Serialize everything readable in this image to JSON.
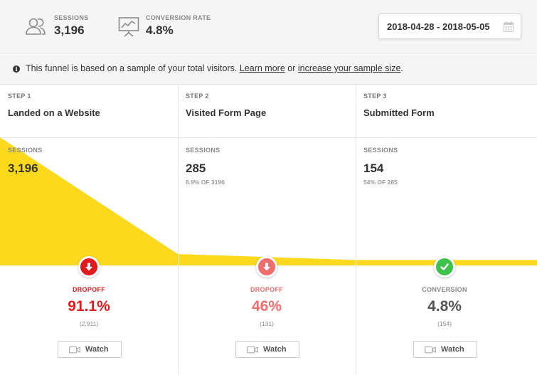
{
  "header": {
    "sessions": {
      "label": "SESSIONS",
      "value": "3,196",
      "icon": "users-icon"
    },
    "conversion_rate": {
      "label": "CONVERSION RATE",
      "value": "4.8%",
      "icon": "presentation-chart-icon"
    },
    "date_range": {
      "value": "2018-04-28 - 2018-05-05",
      "icon": "calendar-icon"
    }
  },
  "notice": {
    "text": "This funnel is based on a sample of your total visitors.",
    "learn_more": "Learn more",
    "or": "or",
    "increase_sample": "increase your sample size",
    "end": "."
  },
  "colors": {
    "funnel_fill": "#fdd91e",
    "dropoff_strong": "#e41a1c",
    "dropoff_light": "#f26d6d",
    "conversion": "#3ec24d"
  },
  "steps": [
    {
      "step_label": "STEP 1",
      "name": "Landed on a Website",
      "sessions_label": "SESSIONS",
      "sessions": "3,196",
      "sessions_value": 3196,
      "percent_of": "",
      "change_kind": "DROPOFF",
      "change_percent": "91.1%",
      "change_count": "(2,911)",
      "badge_icon": "arrow-down-icon",
      "watch_label": "Watch"
    },
    {
      "step_label": "STEP 2",
      "name": "Visited Form Page",
      "sessions_label": "SESSIONS",
      "sessions": "285",
      "sessions_value": 285,
      "percent_of": "8.9% OF 3196",
      "change_kind": "DROPOFF",
      "change_percent": "46%",
      "change_count": "(131)",
      "badge_icon": "arrow-down-icon",
      "watch_label": "Watch"
    },
    {
      "step_label": "STEP 3",
      "name": "Submitted Form",
      "sessions_label": "SESSIONS",
      "sessions": "154",
      "sessions_value": 154,
      "percent_of": "54% OF 285",
      "change_kind": "CONVERSION",
      "change_percent": "4.8%",
      "change_count": "(154)",
      "badge_icon": "check-icon",
      "watch_label": "Watch"
    }
  ]
}
